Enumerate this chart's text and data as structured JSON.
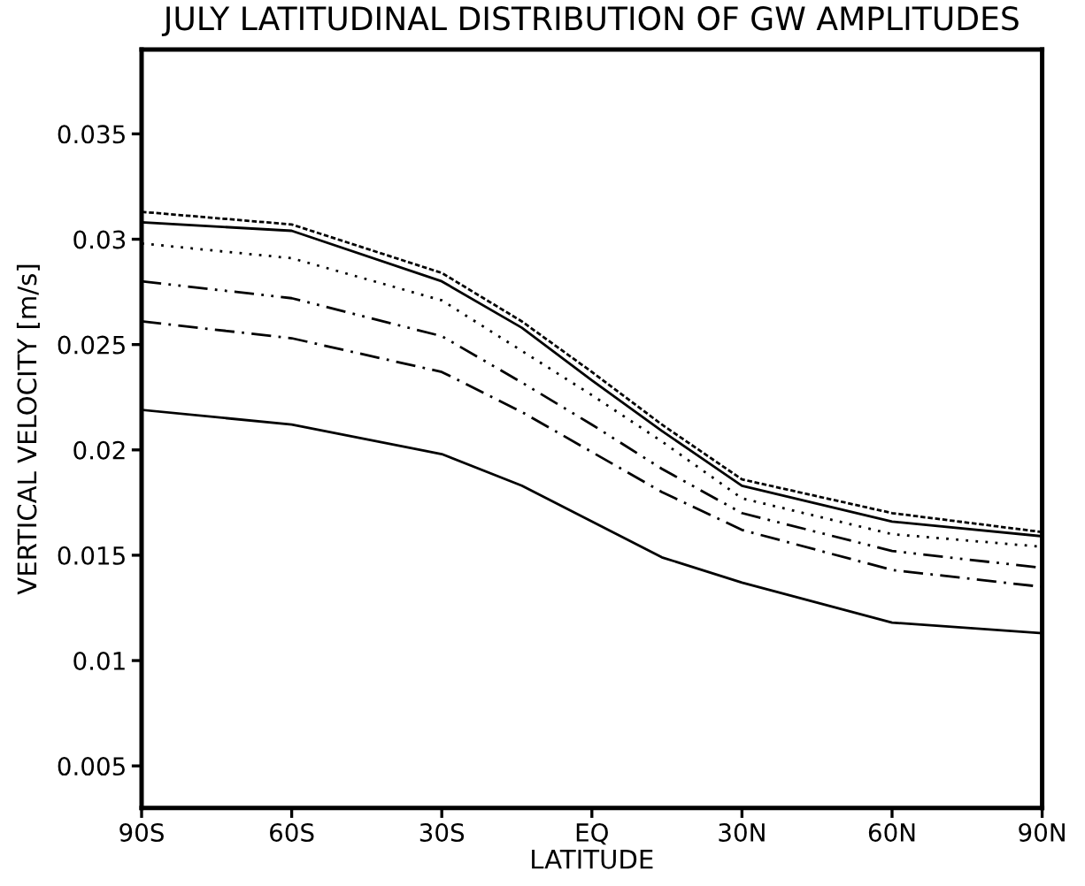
{
  "chart_data": {
    "type": "line",
    "title": "JULY LATITUDINAL DISTRIBUTION OF GW AMPLITUDES",
    "xlabel": "LATITUDE",
    "ylabel": "VERTICAL VELOCITY [m/s]",
    "x": [
      -90,
      -60,
      -30,
      -14,
      0,
      14,
      30,
      60,
      90
    ],
    "series": [
      {
        "color": "#000000",
        "line_style": "dashed",
        "values": [
          0.0313,
          0.0307,
          0.0284,
          0.0261,
          0.0237,
          0.0212,
          0.0186,
          0.017,
          0.0161
        ]
      },
      {
        "color": "#000000",
        "line_style": "solid",
        "values": [
          0.0308,
          0.0304,
          0.028,
          0.0258,
          0.0233,
          0.0209,
          0.0183,
          0.0166,
          0.0159
        ]
      },
      {
        "color": "#000000",
        "line_style": "dotted",
        "values": [
          0.0298,
          0.0291,
          0.0271,
          0.0247,
          0.0226,
          0.0204,
          0.0177,
          0.016,
          0.0154
        ]
      },
      {
        "color": "#000000",
        "line_style": "dashdotdot",
        "values": [
          0.028,
          0.0272,
          0.0254,
          0.0232,
          0.0212,
          0.0191,
          0.017,
          0.0152,
          0.0144
        ]
      },
      {
        "color": "#000000",
        "line_style": "dashdot",
        "values": [
          0.0261,
          0.0253,
          0.0237,
          0.0218,
          0.0199,
          0.018,
          0.0162,
          0.0143,
          0.0135
        ]
      },
      {
        "color": "#000000",
        "line_style": "solid",
        "values": [
          0.0219,
          0.0212,
          0.0198,
          0.0183,
          0.0166,
          0.0149,
          0.0137,
          0.0118,
          0.0113
        ]
      }
    ],
    "xlim": [
      -90,
      90
    ],
    "xticks": [
      {
        "value": -90,
        "label": "90S"
      },
      {
        "value": -60,
        "label": "60S"
      },
      {
        "value": -30,
        "label": "30S"
      },
      {
        "value": 0,
        "label": "EQ"
      },
      {
        "value": 30,
        "label": "30N"
      },
      {
        "value": 60,
        "label": "60N"
      },
      {
        "value": 90,
        "label": "90N"
      }
    ],
    "ylim": [
      0.003,
      0.039
    ],
    "yticks": [
      {
        "value": 0.005,
        "label": "0.005"
      },
      {
        "value": 0.01,
        "label": "0.01"
      },
      {
        "value": 0.015,
        "label": "0.015"
      },
      {
        "value": 0.02,
        "label": "0.02"
      },
      {
        "value": 0.025,
        "label": "0.025"
      },
      {
        "value": 0.03,
        "label": "0.03"
      },
      {
        "value": 0.035,
        "label": "0.035"
      }
    ],
    "grid": false,
    "legend": false,
    "marker": "none"
  }
}
